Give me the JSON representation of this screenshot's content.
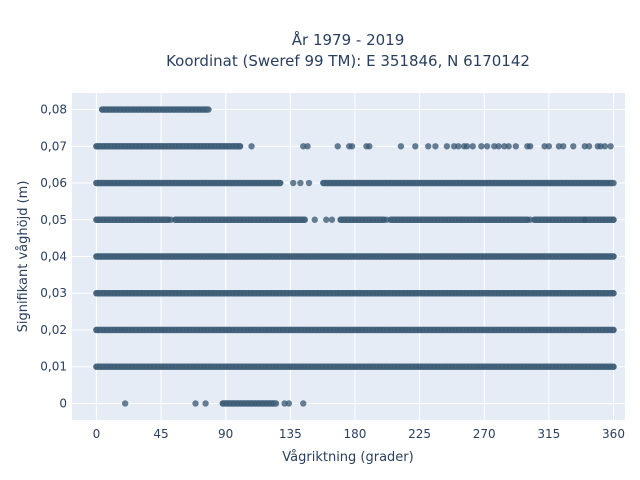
{
  "chart_data": {
    "type": "scatter",
    "title_lines": [
      "År 1979 - 2019",
      "Koordinat (Sweref 99 TM): E 351846, N 6170142"
    ],
    "xlabel": "Vågriktning (grader)",
    "ylabel": "Signifikant våghöjd (m)",
    "xlim": [
      -17,
      368
    ],
    "ylim": [
      -0.0045,
      0.0845
    ],
    "x_ticks": [
      0,
      45,
      90,
      135,
      180,
      225,
      270,
      315,
      360
    ],
    "x_tick_labels": [
      "0",
      "45",
      "90",
      "135",
      "180",
      "225",
      "270",
      "315",
      "360"
    ],
    "y_ticks": [
      0,
      0.01,
      0.02,
      0.03,
      0.04,
      0.05,
      0.06,
      0.07,
      0.08
    ],
    "y_tick_labels": [
      "0",
      "0,01",
      "0,02",
      "0,03",
      "0,04",
      "0,05",
      "0,06",
      "0,07",
      "0,08"
    ],
    "grid": true,
    "colors": {
      "marker": "#355670",
      "plot_bg": "#e5ecf6",
      "grid": "#ffffff",
      "text": "#2a3f5f"
    },
    "series": [
      {
        "bands": [
          {
            "y": 0.08,
            "ranges": [
              [
                4,
                78
              ]
            ],
            "points": []
          },
          {
            "y": 0.07,
            "ranges": [
              [
                0,
                100
              ]
            ],
            "points": [
              108,
              144,
              147,
              168,
              176,
              178,
              188,
              190,
              212,
              222,
              231,
              236,
              244,
              249,
              252,
              256,
              258,
              262,
              268,
              272,
              277,
              280,
              284,
              287,
              292,
              300,
              302,
              312,
              315,
              322,
              325,
              332,
              340,
              343,
              349,
              351,
              354,
              358
            ]
          },
          {
            "y": 0.06,
            "ranges": [
              [
                0,
                128
              ],
              [
                158,
                360
              ]
            ],
            "points": [
              137,
              142,
              148
            ]
          },
          {
            "y": 0.05,
            "ranges": [
              [
                0,
                50
              ],
              [
                55,
                145
              ],
              [
                170,
                200
              ],
              [
                205,
                300
              ],
              [
                305,
                360
              ]
            ],
            "points": [
              52,
              152,
              160,
              164,
              202,
              302,
              340
            ]
          },
          {
            "y": 0.04,
            "ranges": [
              [
                0,
                360
              ]
            ],
            "points": []
          },
          {
            "y": 0.03,
            "ranges": [
              [
                0,
                360
              ]
            ],
            "points": []
          },
          {
            "y": 0.02,
            "ranges": [
              [
                0,
                360
              ]
            ],
            "points": []
          },
          {
            "y": 0.01,
            "ranges": [
              [
                0,
                360
              ]
            ],
            "points": []
          },
          {
            "y": 0.0,
            "ranges": [
              [
                88,
                125
              ]
            ],
            "points": [
              20,
              69,
              76,
              131,
              134,
              144
            ]
          }
        ]
      }
    ]
  }
}
